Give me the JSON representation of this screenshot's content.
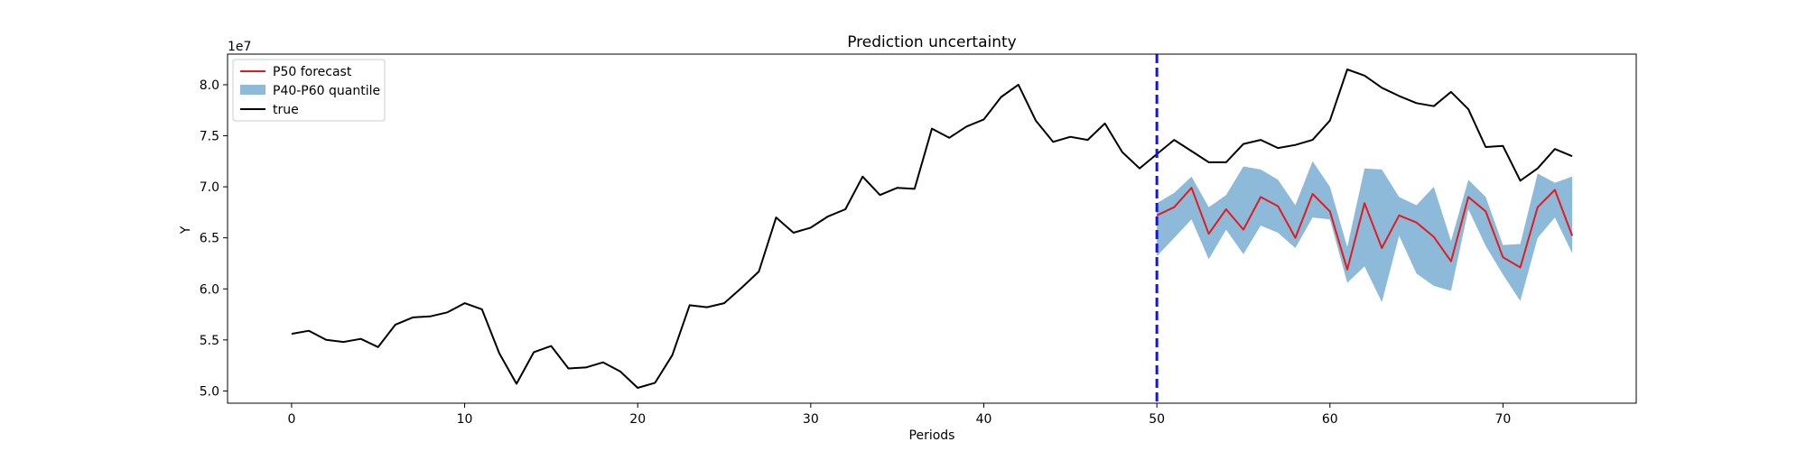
{
  "chart_data": {
    "type": "line",
    "title": "Prediction uncertainty",
    "xlabel": "Periods",
    "ylabel": "Y",
    "y_multiplier_label": "1e7",
    "xlim": [
      -3.7,
      77.7
    ],
    "ylim": [
      4.88,
      8.3
    ],
    "xticks": [
      0,
      10,
      20,
      30,
      40,
      50,
      60,
      70
    ],
    "yticks": [
      5.0,
      5.5,
      6.0,
      6.5,
      7.0,
      7.5,
      8.0
    ],
    "ytick_labels": [
      "5.0",
      "5.5",
      "6.0",
      "6.5",
      "7.0",
      "7.5",
      "8.0"
    ],
    "grid": false,
    "legend_position": "top-left",
    "forecast_start": 50,
    "legend": [
      {
        "label": "P50 forecast",
        "kind": "line",
        "color": "#e41a1c"
      },
      {
        "label": "P40-P60 quantile",
        "kind": "patch",
        "color": "#8dbad9"
      },
      {
        "label": "true",
        "kind": "line",
        "color": "#000000"
      }
    ],
    "true_series": {
      "name": "true",
      "color": "#000000",
      "x_start": 0,
      "values": [
        5.56,
        5.59,
        5.5,
        5.48,
        5.51,
        5.43,
        5.65,
        5.72,
        5.73,
        5.77,
        5.86,
        5.8,
        5.37,
        5.07,
        5.38,
        5.44,
        5.22,
        5.23,
        5.28,
        5.19,
        5.03,
        5.08,
        5.35,
        5.84,
        5.82,
        5.86,
        6.01,
        6.17,
        6.7,
        6.55,
        6.6,
        6.71,
        6.78,
        7.1,
        6.92,
        6.99,
        6.98,
        7.57,
        7.48,
        7.59,
        7.66,
        7.88,
        8.0,
        7.65,
        7.44,
        7.49,
        7.46,
        7.62,
        7.34,
        7.18,
        7.32,
        7.46,
        7.35,
        7.24,
        7.24,
        7.42,
        7.46,
        7.38,
        7.41,
        7.46,
        7.65,
        8.15,
        8.09,
        7.97,
        7.89,
        7.82,
        7.79,
        7.93,
        7.76,
        7.39,
        7.4,
        7.06,
        7.18,
        7.37,
        7.3
      ]
    },
    "forecast_series": {
      "name": "P50 forecast",
      "color": "#e41a1c",
      "x_start": 50,
      "values": [
        6.72,
        6.8,
        6.99,
        6.54,
        6.78,
        6.58,
        6.9,
        6.81,
        6.5,
        6.93,
        6.76,
        6.19,
        6.84,
        6.4,
        6.72,
        6.65,
        6.51,
        6.27,
        6.9,
        6.76,
        6.31,
        6.21,
        6.8,
        6.97,
        6.52
      ]
    },
    "quantile_band": {
      "name": "P40-P60 quantile",
      "color": "#8dbad9",
      "x_start": 50,
      "lower": [
        6.32,
        6.5,
        6.68,
        6.29,
        6.58,
        6.34,
        6.62,
        6.55,
        6.4,
        6.7,
        6.68,
        6.06,
        6.22,
        5.87,
        6.52,
        6.15,
        6.03,
        5.98,
        6.78,
        6.42,
        6.14,
        5.88,
        6.5,
        6.7,
        6.35
      ],
      "upper": [
        6.84,
        6.94,
        7.1,
        6.8,
        6.92,
        7.2,
        7.17,
        7.07,
        6.82,
        7.25,
        7.0,
        6.41,
        7.18,
        7.17,
        6.9,
        6.82,
        7.0,
        6.47,
        7.07,
        6.9,
        6.43,
        6.44,
        7.13,
        7.04,
        7.1
      ]
    }
  }
}
